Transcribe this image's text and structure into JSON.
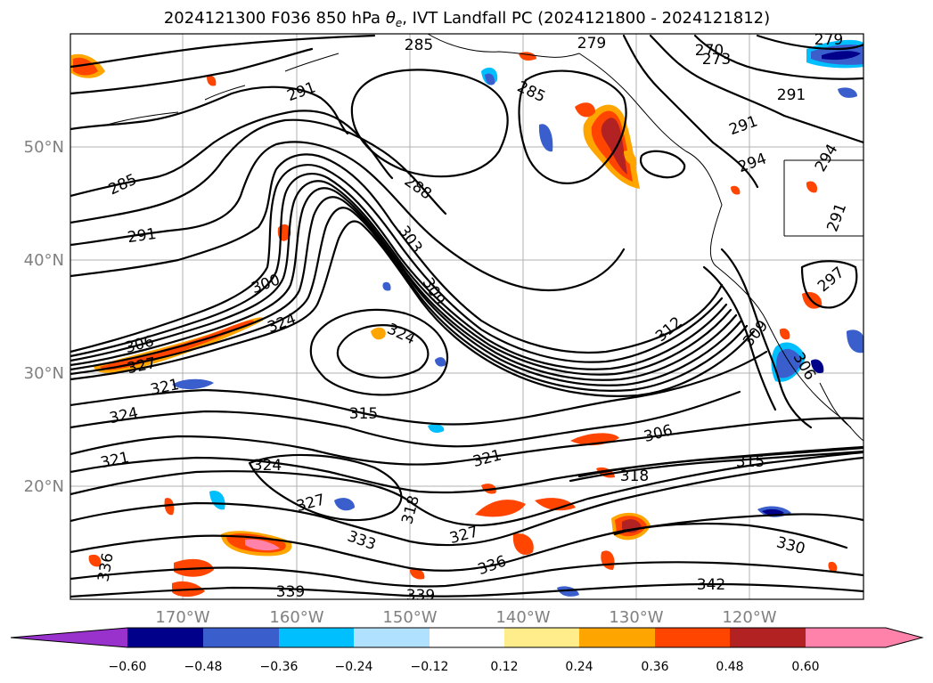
{
  "title": "2024121300 F036 850 hPa θe, IVT Landfall PC (2024121800 - 2024121812)",
  "title_main": "2024121300 F036 850 hPa ",
  "title_theta": "θ",
  "title_sub": "e",
  "title_rest": ", IVT Landfall PC (2024121800 - 2024121812)",
  "latitude_labels": [
    "50°N",
    "40°N",
    "30°N",
    "20°N"
  ],
  "longitude_labels": [
    "170°W",
    "160°W",
    "150°W",
    "140°W",
    "130°W",
    "120°W"
  ],
  "colorbar": {
    "tick_labels": [
      "−0.60",
      "−0.48",
      "−0.36",
      "−0.24",
      "−0.12",
      "0.12",
      "0.24",
      "0.36",
      "0.48",
      "0.60"
    ],
    "colors": [
      "#9932cc",
      "#00008b",
      "#3a5fcd",
      "#00bfff",
      "#b0e2ff",
      "#ffffff",
      "#ffec8b",
      "#ffa500",
      "#ff4500",
      "#b22222",
      "#ff82ab",
      "#ff82ab"
    ]
  },
  "contour_labels": [
    "285",
    "285",
    "291",
    "285",
    "291",
    "288",
    "303",
    "309",
    "300",
    "324",
    "306",
    "327",
    "324",
    "321",
    "324",
    "315",
    "321",
    "321",
    "324",
    "327",
    "318",
    "333",
    "327",
    "336",
    "336",
    "339",
    "339",
    "306",
    "318",
    "315",
    "330",
    "342",
    "312",
    "291",
    "294",
    "297",
    "291",
    "279",
    "273",
    "270",
    "309",
    "306",
    "291",
    "279",
    "294"
  ]
}
